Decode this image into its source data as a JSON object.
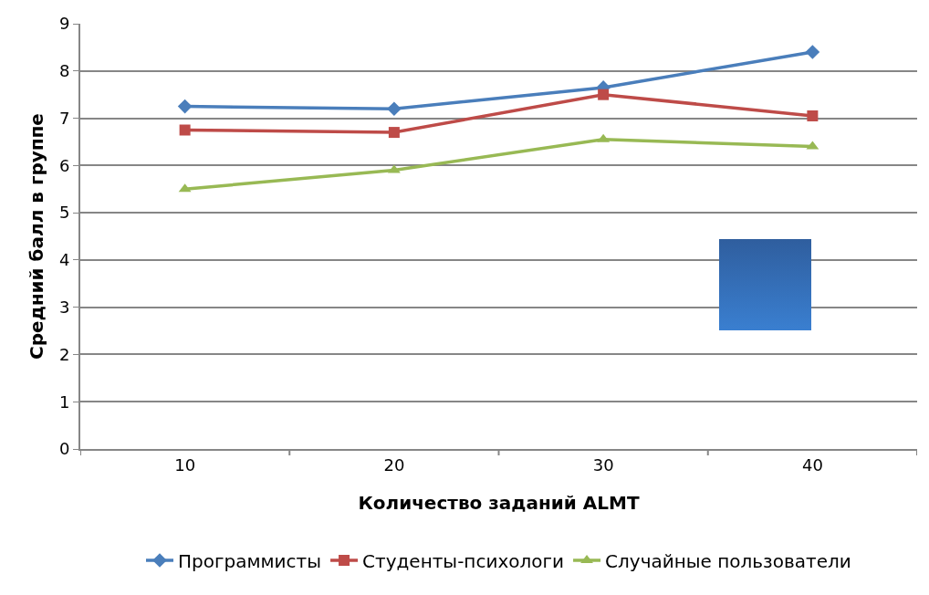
{
  "chart_data": {
    "type": "line",
    "xlabel": "Количество заданий ALMT",
    "ylabel": "Средний балл в группе",
    "categories": [
      "10",
      "20",
      "30",
      "40"
    ],
    "series": [
      {
        "name": "Программисты",
        "color": "#4a7ebb",
        "marker": "diamond",
        "values": [
          7.25,
          7.2,
          7.65,
          8.4
        ]
      },
      {
        "name": "Студенты-психологи",
        "color": "#be4b48",
        "marker": "square",
        "values": [
          6.75,
          6.7,
          7.5,
          7.05
        ]
      },
      {
        "name": "Случайные пользователи",
        "color": "#98b954",
        "marker": "triangle",
        "values": [
          5.5,
          5.9,
          6.55,
          6.4
        ]
      }
    ],
    "ylim": [
      0,
      9
    ],
    "yticks": [
      0,
      1,
      2,
      3,
      4,
      5,
      6,
      7,
      8,
      9
    ],
    "grid": "y",
    "legend": "bottom",
    "line_style": "solid"
  }
}
